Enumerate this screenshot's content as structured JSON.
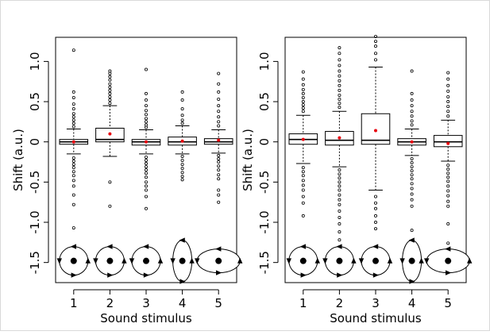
{
  "chart_data": [
    {
      "type": "box",
      "xlabel": "Sound stimulus",
      "ylabel": "Shift (a.u.)",
      "categories": [
        "1",
        "2",
        "3",
        "4",
        "5"
      ],
      "ylim": [
        -1.75,
        1.3
      ],
      "yticks": [
        "-1.5",
        "-1.0",
        "-0.5",
        "0",
        "0.5",
        "1.0"
      ],
      "ytick_values": [
        -1.5,
        -1.0,
        -0.5,
        0,
        0.5,
        1.0
      ],
      "grid": false,
      "legend": "none",
      "boxes": [
        {
          "median": 0.0,
          "q1": -0.03,
          "q3": 0.03,
          "whisker_low": -0.15,
          "whisker_high": 0.16,
          "mean": 0.0
        },
        {
          "median": 0.03,
          "q1": 0.0,
          "q3": 0.17,
          "whisker_low": -0.18,
          "whisker_high": 0.45,
          "mean": 0.1
        },
        {
          "median": 0.0,
          "q1": -0.04,
          "q3": 0.03,
          "whisker_low": -0.15,
          "whisker_high": 0.15,
          "mean": 0.0
        },
        {
          "median": 0.0,
          "q1": -0.04,
          "q3": 0.06,
          "whisker_low": -0.15,
          "whisker_high": 0.2,
          "mean": 0.01
        },
        {
          "median": 0.0,
          "q1": -0.03,
          "q3": 0.04,
          "whisker_low": -0.14,
          "whisker_high": 0.15,
          "mean": 0.02
        }
      ],
      "stimulus_icons": [
        {
          "shape": "circle"
        },
        {
          "shape": "circle"
        },
        {
          "shape": "circle"
        },
        {
          "shape": "vertical-ellipse"
        },
        {
          "shape": "horizontal-ellipse"
        }
      ],
      "outliers": [
        [
          1.14,
          0.62,
          0.55,
          0.47,
          0.41,
          0.35,
          0.31,
          0.27,
          0.23,
          0.19,
          -0.2,
          -0.24,
          -0.28,
          -0.32,
          -0.37,
          -0.42,
          -0.48,
          -0.55,
          -0.66,
          -0.78,
          -1.07
        ],
        [
          0.88,
          0.85,
          0.81,
          0.77,
          0.72,
          0.68,
          0.64,
          0.6,
          0.56,
          0.52,
          0.48,
          -0.5,
          -0.8
        ],
        [
          0.9,
          0.6,
          0.52,
          0.45,
          0.39,
          0.34,
          0.29,
          0.25,
          0.21,
          0.18,
          -0.19,
          -0.23,
          -0.27,
          -0.31,
          -0.35,
          -0.39,
          -0.44,
          -0.5,
          -0.55,
          -0.6,
          -0.68,
          -0.83
        ],
        [
          0.62,
          0.52,
          0.41,
          0.33,
          0.27,
          0.23,
          -0.18,
          -0.23,
          -0.28,
          -0.33,
          -0.38,
          -0.43,
          -0.47
        ],
        [
          0.85,
          0.72,
          0.62,
          0.53,
          0.45,
          0.38,
          0.31,
          0.25,
          0.2,
          -0.17,
          -0.21,
          -0.25,
          -0.3,
          -0.35,
          -0.41,
          -0.46,
          -0.6,
          -0.66,
          -0.75
        ]
      ]
    },
    {
      "type": "box",
      "xlabel": "Sound stimulus",
      "ylabel": "Shift (a.u.)",
      "categories": [
        "1",
        "2",
        "3",
        "4",
        "5"
      ],
      "ylim": [
        -1.75,
        1.3
      ],
      "yticks": [
        "-1.5",
        "-1.0",
        "-0.5",
        "0",
        "0.5",
        "1.0"
      ],
      "ytick_values": [
        -1.5,
        -1.0,
        -0.5,
        0,
        0.5,
        1.0
      ],
      "grid": false,
      "legend": "none",
      "boxes": [
        {
          "median": 0.03,
          "q1": -0.03,
          "q3": 0.1,
          "whisker_low": -0.27,
          "whisker_high": 0.33,
          "mean": 0.03
        },
        {
          "median": 0.02,
          "q1": -0.04,
          "q3": 0.13,
          "whisker_low": -0.31,
          "whisker_high": 0.38,
          "mean": 0.05
        },
        {
          "median": 0.02,
          "q1": -0.03,
          "q3": 0.35,
          "whisker_low": -0.6,
          "whisker_high": 0.93,
          "mean": 0.14
        },
        {
          "median": 0.0,
          "q1": -0.04,
          "q3": 0.04,
          "whisker_low": -0.17,
          "whisker_high": 0.16,
          "mean": 0.0
        },
        {
          "median": 0.0,
          "q1": -0.06,
          "q3": 0.08,
          "whisker_low": -0.24,
          "whisker_high": 0.27,
          "mean": -0.02
        }
      ],
      "stimulus_icons": [
        {
          "shape": "circle"
        },
        {
          "shape": "circle"
        },
        {
          "shape": "circle"
        },
        {
          "shape": "vertical-ellipse"
        },
        {
          "shape": "horizontal-ellipse"
        }
      ],
      "outliers": [
        [
          0.87,
          0.78,
          0.71,
          0.65,
          0.6,
          0.55,
          0.5,
          0.46,
          0.42,
          0.38,
          -0.32,
          -0.37,
          -0.42,
          -0.48,
          -0.54,
          -0.6,
          -0.68,
          -0.76,
          -0.92
        ],
        [
          1.17,
          1.1,
          1.02,
          0.95,
          0.88,
          0.82,
          0.76,
          0.7,
          0.64,
          0.58,
          0.53,
          0.48,
          0.43,
          -0.35,
          -0.4,
          -0.45,
          -0.5,
          -0.55,
          -0.6,
          -0.66,
          -0.72,
          -0.78,
          -0.86,
          -0.94,
          -1.02,
          -1.12,
          -1.22
        ],
        [
          1.31,
          1.25,
          1.19,
          1.1,
          1.02,
          -0.68,
          -0.76,
          -0.83,
          -0.92,
          -1.0,
          -1.08
        ],
        [
          0.88,
          0.6,
          0.52,
          0.45,
          0.38,
          0.32,
          0.26,
          0.21,
          -0.21,
          -0.26,
          -0.31,
          -0.36,
          -0.41,
          -0.46,
          -0.52,
          -0.58,
          -0.65,
          -0.72,
          -0.8,
          -1.1
        ],
        [
          0.86,
          0.78,
          0.7,
          0.63,
          0.56,
          0.5,
          0.44,
          0.38,
          0.32,
          -0.29,
          -0.34,
          -0.39,
          -0.44,
          -0.49,
          -0.55,
          -0.61,
          -0.67,
          -0.74,
          -0.8,
          -1.02,
          -1.26
        ]
      ]
    }
  ],
  "colors": {
    "mean_marker": "#e8000b",
    "box_fill": "#ffffff",
    "stroke": "#000000"
  }
}
